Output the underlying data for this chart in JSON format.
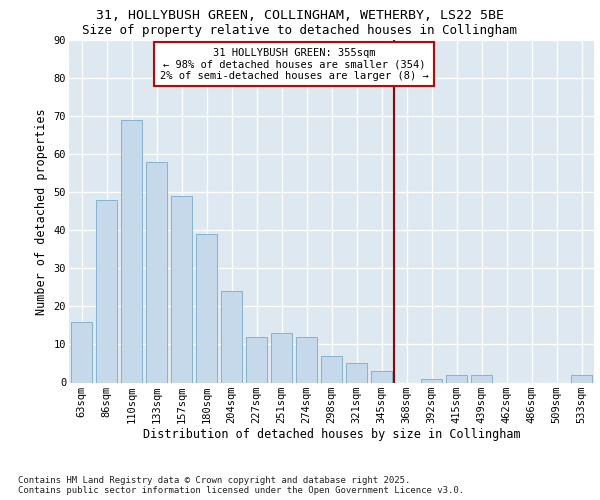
{
  "title_line1": "31, HOLLYBUSH GREEN, COLLINGHAM, WETHERBY, LS22 5BE",
  "title_line2": "Size of property relative to detached houses in Collingham",
  "xlabel": "Distribution of detached houses by size in Collingham",
  "ylabel": "Number of detached properties",
  "categories": [
    "63sqm",
    "86sqm",
    "110sqm",
    "133sqm",
    "157sqm",
    "180sqm",
    "204sqm",
    "227sqm",
    "251sqm",
    "274sqm",
    "298sqm",
    "321sqm",
    "345sqm",
    "368sqm",
    "392sqm",
    "415sqm",
    "439sqm",
    "462sqm",
    "486sqm",
    "509sqm",
    "533sqm"
  ],
  "values": [
    16,
    48,
    69,
    58,
    49,
    39,
    24,
    12,
    13,
    12,
    7,
    5,
    3,
    0,
    1,
    2,
    2,
    0,
    0,
    0,
    2
  ],
  "bar_color": "#c6d9ea",
  "bar_edge_color": "#7aaac8",
  "vline_x_index": 12.5,
  "vline_color": "#990000",
  "annotation_text": "31 HOLLYBUSH GREEN: 355sqm\n← 98% of detached houses are smaller (354)\n2% of semi-detached houses are larger (8) →",
  "annotation_box_color": "#ffffff",
  "annotation_box_edge_color": "#cc0000",
  "ylim": [
    0,
    90
  ],
  "yticks": [
    0,
    10,
    20,
    30,
    40,
    50,
    60,
    70,
    80,
    90
  ],
  "background_color": "#dde8f0",
  "grid_color": "#ffffff",
  "footer_text": "Contains HM Land Registry data © Crown copyright and database right 2025.\nContains public sector information licensed under the Open Government Licence v3.0.",
  "title_fontsize": 9.5,
  "subtitle_fontsize": 9,
  "axis_label_fontsize": 8.5,
  "tick_fontsize": 7.5,
  "annotation_fontsize": 7.5,
  "footer_fontsize": 6.5
}
